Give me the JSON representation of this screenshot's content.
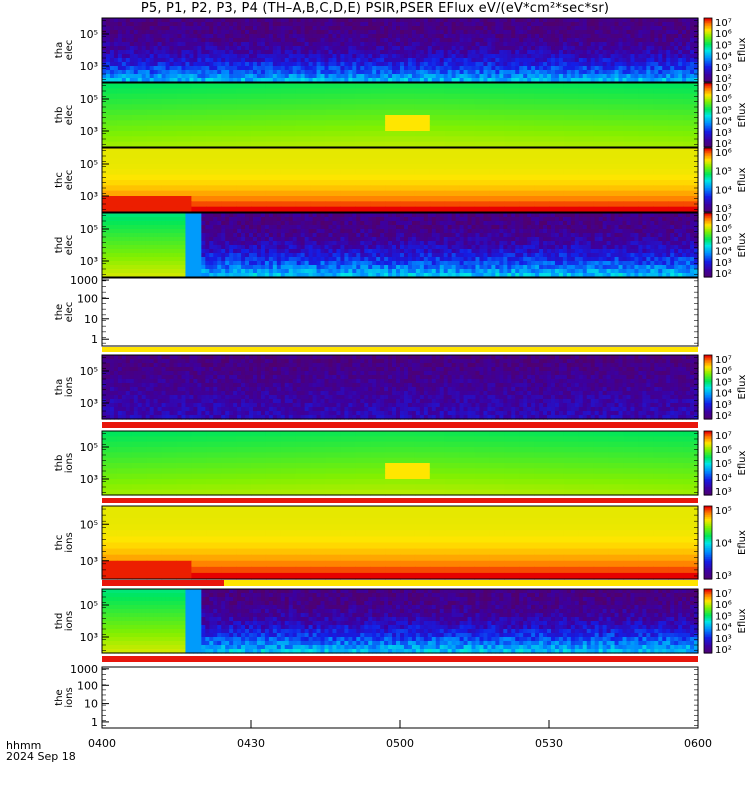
{
  "title": "P5, P1, P2, P3, P4 (TH–A,B,C,D,E) PSIR,PSER EFlux eV/(eV*cm²*sec*sr)",
  "footer": {
    "time_label": "hhmm",
    "date_label": "2024 Sep 18"
  },
  "colors": {
    "bar_red": "#e8160c",
    "bar_yellow": "#ffe400"
  },
  "chart_data": {
    "type": "heatmap",
    "x_axis": {
      "range": [
        "04:00",
        "06:00"
      ],
      "ticks": [
        "0400",
        "0430",
        "0500",
        "0530",
        "0600"
      ]
    },
    "panels": [
      {
        "name": "tha elec",
        "ylabels": [
          "10⁵",
          "10³"
        ],
        "zticks": [
          "10⁷",
          "10⁶",
          "10⁵",
          "10⁴",
          "10³",
          "10²"
        ],
        "zlabel": "Eflux",
        "pattern": "noisy"
      },
      {
        "name": "thb elec",
        "ylabels": [
          "10⁵",
          "10³"
        ],
        "zticks": [
          "10⁷",
          "10⁶",
          "10⁵",
          "10⁴",
          "10³",
          "10²"
        ],
        "zlabel": "Eflux",
        "pattern": "smooth-green"
      },
      {
        "name": "thc elec",
        "ylabels": [
          "10⁵",
          "10³"
        ],
        "zticks": [
          "10⁶",
          "10⁵",
          "10⁴",
          "10³"
        ],
        "zlabel": "Eflux",
        "pattern": "smooth-yellow"
      },
      {
        "name": "thd elec",
        "ylabels": [
          "10⁵",
          "10³"
        ],
        "zticks": [
          "10⁷",
          "10⁶",
          "10⁵",
          "10⁴",
          "10³",
          "10²"
        ],
        "zlabel": "Eflux",
        "pattern": "split"
      },
      {
        "name": "the elec",
        "ylabels": [
          "1000",
          "100",
          "10",
          "1"
        ],
        "pattern": "empty",
        "bars": [
          "yellow"
        ]
      },
      {
        "name": "tha ions",
        "ylabels": [
          "10⁵",
          "10³"
        ],
        "zticks": [
          "10⁷",
          "10⁶",
          "10⁵",
          "10⁴",
          "10³",
          "10²"
        ],
        "zlabel": "Eflux",
        "pattern": "noisy-ions",
        "bars": [
          "red"
        ]
      },
      {
        "name": "thb ions",
        "ylabels": [
          "10⁵",
          "10³"
        ],
        "zticks": [
          "10⁷",
          "10⁶",
          "10⁵",
          "10⁴",
          "10³"
        ],
        "zlabel": "Eflux",
        "pattern": "smooth-green",
        "bars": [
          "red"
        ]
      },
      {
        "name": "thc ions",
        "ylabels": [
          "10⁵",
          "10³"
        ],
        "zticks": [
          "10⁵",
          "10⁴",
          "10³"
        ],
        "zlabel": "Eflux",
        "pattern": "smooth-yellow",
        "bars": [
          "red-yellow"
        ]
      },
      {
        "name": "thd ions",
        "ylabels": [
          "10⁵",
          "10³"
        ],
        "zticks": [
          "10⁷",
          "10⁶",
          "10⁵",
          "10⁴",
          "10³",
          "10²"
        ],
        "zlabel": "Eflux",
        "pattern": "split",
        "bars": [
          "red"
        ]
      },
      {
        "name": "the ions",
        "ylabels": [
          "1000",
          "100",
          "10",
          "1"
        ],
        "pattern": "empty"
      }
    ]
  }
}
